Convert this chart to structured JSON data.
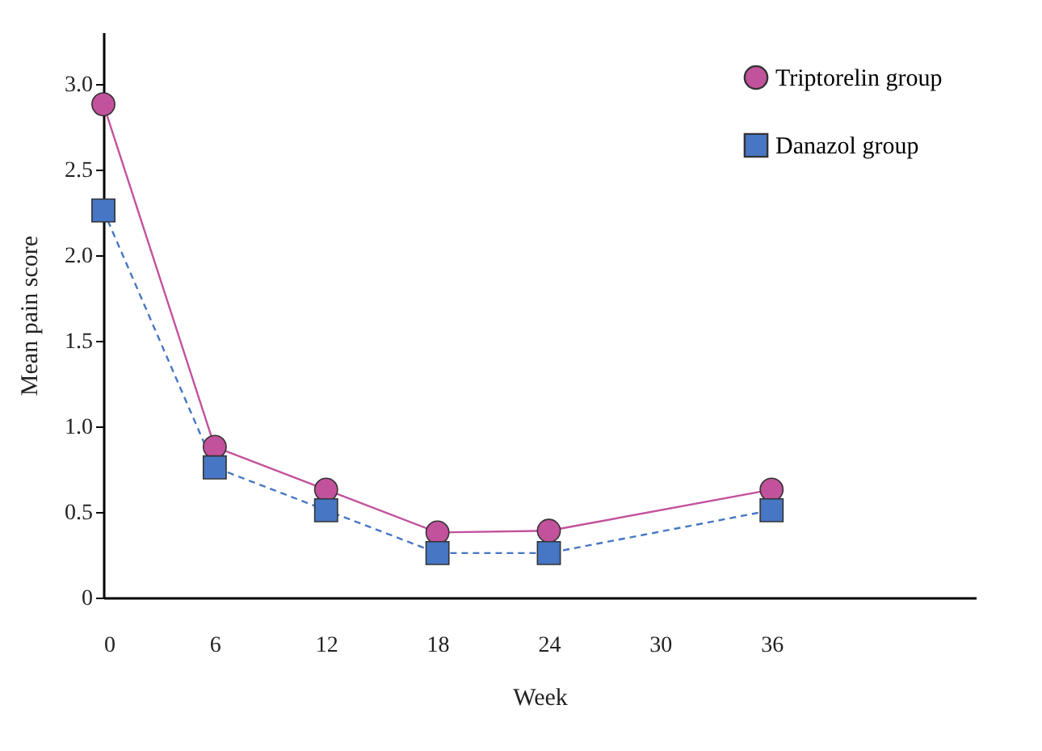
{
  "chart_data": {
    "type": "line",
    "xlabel": "Week",
    "ylabel": "Mean pain score",
    "x": [
      0,
      6,
      12,
      18,
      24,
      36
    ],
    "series": [
      {
        "name": "Triptorelin group",
        "color": "#c2529c",
        "values": [
          2.88,
          0.88,
          0.63,
          0.38,
          0.39,
          0.63
        ],
        "marker": "circle",
        "line_style": "solid"
      },
      {
        "name": "Danazol group",
        "color": "#4676c4",
        "values": [
          2.26,
          0.76,
          0.51,
          0.26,
          0.26,
          0.51
        ],
        "marker": "square",
        "line_style": "dashed"
      }
    ],
    "xlim": [
      0,
      47
    ],
    "xticks": [
      0,
      6,
      12,
      18,
      24,
      30,
      36
    ],
    "ylim": [
      0,
      3.3
    ],
    "yticks": [
      {
        "value": 0,
        "label": "0"
      },
      {
        "value": 0.5,
        "label": "0.5"
      },
      {
        "value": 1,
        "label": "1.0"
      },
      {
        "value": 1.5,
        "label": "1.5"
      },
      {
        "value": 2,
        "label": "2.0"
      },
      {
        "value": 2.5,
        "label": "2.5"
      },
      {
        "value": 3,
        "label": "3.0"
      }
    ],
    "legend": "top right",
    "grid": false
  }
}
